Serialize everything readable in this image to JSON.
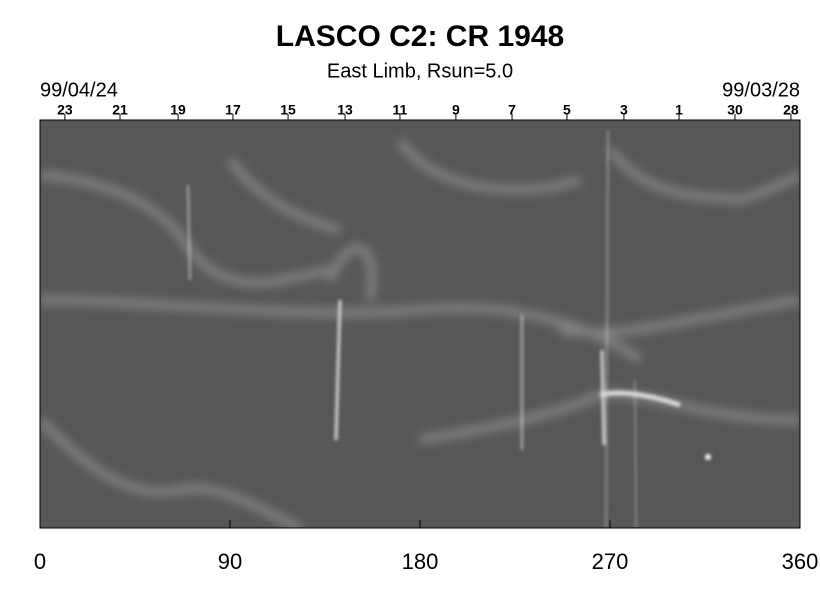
{
  "chart_data": {
    "type": "image",
    "title": "LASCO C2: CR 1948",
    "subtitle": "East Limb, Rsun=5.0",
    "start_date": "99/04/24",
    "end_date": "99/03/28",
    "xlim": [
      0,
      360
    ],
    "xticks": [
      0,
      90,
      180,
      270,
      360
    ],
    "top_ticks": [
      {
        "value": 11.8,
        "label": "23"
      },
      {
        "value": 37.9,
        "label": "21"
      },
      {
        "value": 65.4,
        "label": "19"
      },
      {
        "value": 91.4,
        "label": "17"
      },
      {
        "value": 117.5,
        "label": "15"
      },
      {
        "value": 144.5,
        "label": "13"
      },
      {
        "value": 170.5,
        "label": "11"
      },
      {
        "value": 197,
        "label": "9"
      },
      {
        "value": 223.6,
        "label": "7"
      },
      {
        "value": 249.6,
        "label": "5"
      },
      {
        "value": 276.6,
        "label": "3"
      },
      {
        "value": 302.7,
        "label": "1"
      },
      {
        "value": 329.2,
        "label": "30"
      },
      {
        "value": 355.7,
        "label": "28"
      }
    ]
  }
}
